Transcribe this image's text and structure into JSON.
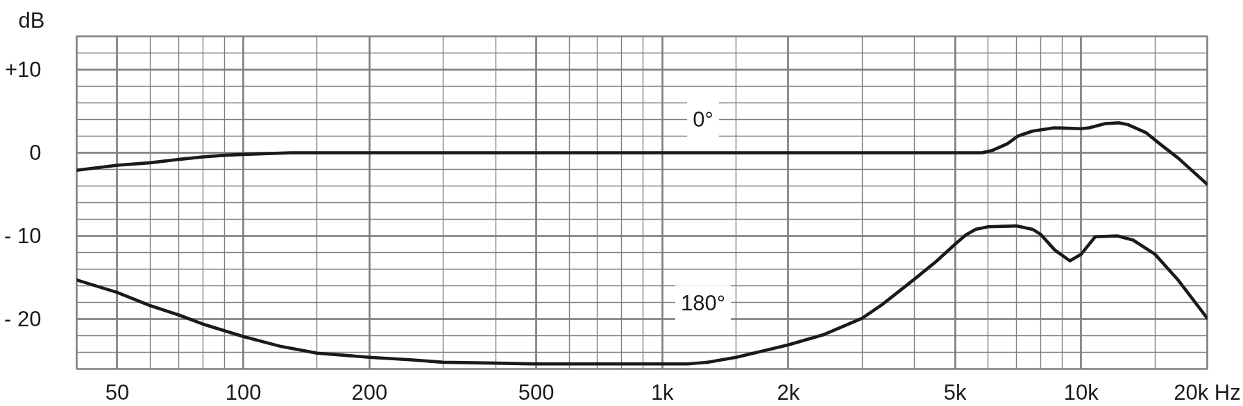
{
  "chart_data": {
    "type": "line",
    "ylabel": "dB",
    "log": "x",
    "grid": true,
    "xlim": [
      40,
      20000
    ],
    "ylim": [
      -26,
      14
    ],
    "xticks": [
      50,
      {
        "value": 60,
        "label": null
      },
      {
        "value": 70,
        "label": null
      },
      {
        "value": 80,
        "label": null
      },
      {
        "value": 90,
        "label": null
      },
      100,
      {
        "value": 150,
        "label": null
      },
      200,
      {
        "value": 300,
        "label": null
      },
      {
        "value": 400,
        "label": null
      },
      500,
      {
        "value": 600,
        "label": null
      },
      {
        "value": 700,
        "label": null
      },
      {
        "value": 800,
        "label": null
      },
      {
        "value": 900,
        "label": null
      },
      {
        "value": 1000,
        "label": "1k"
      },
      {
        "value": 1500,
        "label": null
      },
      {
        "value": 2000,
        "label": "2k"
      },
      {
        "value": 3000,
        "label": null
      },
      {
        "value": 4000,
        "label": null
      },
      {
        "value": 5000,
        "label": "5k"
      },
      {
        "value": 6000,
        "label": null
      },
      {
        "value": 7000,
        "label": null
      },
      {
        "value": 8000,
        "label": null
      },
      {
        "value": 9000,
        "label": null
      },
      {
        "value": 10000,
        "label": "10k"
      },
      {
        "value": 15000,
        "label": null
      },
      {
        "value": 20000,
        "label": "20k Hz"
      }
    ],
    "yticks": [
      {
        "value": -24,
        "label": null
      },
      {
        "value": -22,
        "label": null
      },
      {
        "value": -20,
        "label": "- 20"
      },
      {
        "value": -18,
        "label": null
      },
      {
        "value": -16,
        "label": null
      },
      {
        "value": -14,
        "label": null
      },
      {
        "value": -12,
        "label": null
      },
      {
        "value": -10,
        "label": "- 10"
      },
      {
        "value": -8,
        "label": null
      },
      {
        "value": -6,
        "label": null
      },
      {
        "value": -4,
        "label": null
      },
      {
        "value": -2,
        "label": null
      },
      0,
      {
        "value": 2,
        "label": null
      },
      {
        "value": 4,
        "label": null
      },
      {
        "value": 6,
        "label": null
      },
      {
        "value": 8,
        "label": null
      },
      {
        "value": 10,
        "label": "+10"
      },
      {
        "value": 12,
        "label": null
      }
    ],
    "series": [
      {
        "name": "0°",
        "color": "#1a1a1a",
        "x": [
          40,
          50,
          60,
          70,
          80,
          90,
          100,
          130,
          5800,
          6150,
          6670,
          7060,
          7650,
          8630,
          10000,
          10450,
          11400,
          12300,
          12900,
          14300,
          15300,
          17100,
          20000
        ],
        "values": [
          -2.1,
          -1.5,
          -1.2,
          -0.8,
          -0.5,
          -0.3,
          -0.2,
          0,
          0,
          0.3,
          1.1,
          2.0,
          2.6,
          3.0,
          2.9,
          3.0,
          3.5,
          3.6,
          3.4,
          2.4,
          1.2,
          -0.7,
          -3.8
        ]
      },
      {
        "name": "180°",
        "color": "#1a1a1a",
        "x": [
          40,
          50,
          60,
          70,
          80,
          90,
          100,
          123,
          150,
          200,
          250,
          300,
          400,
          500,
          1150,
          1280,
          1500,
          1720,
          2000,
          2420,
          3000,
          3340,
          4000,
          4500,
          5000,
          5300,
          5600,
          6000,
          7000,
          7650,
          8000,
          8650,
          9400,
          10000,
          10800,
          12200,
          13300,
          15000,
          17100,
          20000
        ],
        "values": [
          -15.3,
          -16.8,
          -18.4,
          -19.5,
          -20.6,
          -21.4,
          -22.1,
          -23.3,
          -24.1,
          -24.6,
          -24.9,
          -25.2,
          -25.3,
          -25.4,
          -25.4,
          -25.2,
          -24.6,
          -23.9,
          -23.1,
          -21.9,
          -19.9,
          -18.3,
          -15.2,
          -13.1,
          -11.0,
          -9.9,
          -9.2,
          -8.9,
          -8.8,
          -9.2,
          -9.8,
          -11.7,
          -13.0,
          -12.2,
          -10.1,
          -10.0,
          -10.5,
          -12.2,
          -15.4,
          -19.9
        ]
      }
    ]
  }
}
